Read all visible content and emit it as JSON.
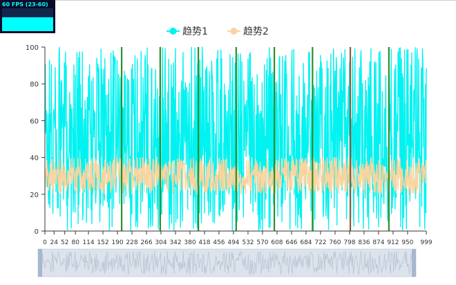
{
  "fps_meter": {
    "label": "60 FPS (23-60)",
    "level": 0.6,
    "color": "#00ffff"
  },
  "chart_data": {
    "type": "line",
    "title": "",
    "xlabel": "",
    "ylabel": "",
    "legend_position": "top-center",
    "grid": false,
    "ylim": [
      0,
      100
    ],
    "xlim": [
      0,
      999
    ],
    "y_ticks": [
      0,
      20,
      40,
      60,
      80,
      100
    ],
    "x_ticks": [
      0,
      24,
      52,
      80,
      114,
      152,
      190,
      228,
      266,
      304,
      342,
      380,
      418,
      456,
      494,
      532,
      570,
      608,
      646,
      684,
      722,
      760,
      798,
      836,
      874,
      912,
      950,
      999
    ],
    "series": [
      {
        "name": "趋势1",
        "color": "#00f2f1",
        "range": [
          0,
          100
        ],
        "points": 1000
      },
      {
        "name": "趋势2",
        "color": "#fbd49f",
        "range": [
          20,
          40
        ],
        "points": 1000
      }
    ],
    "marklines": [
      {
        "x": 201,
        "color": "#2a8f2a"
      },
      {
        "x": 302,
        "color": "#2a8f2a"
      },
      {
        "x": 402,
        "color": "#2a8f2a"
      },
      {
        "x": 501,
        "color": "#2a8f2a"
      },
      {
        "x": 601,
        "color": "#2a8f2a"
      },
      {
        "x": 701,
        "color": "#2a8f2a"
      },
      {
        "x": 800,
        "color": "#8b5a3c"
      },
      {
        "x": 901,
        "color": "#2a8f2a"
      }
    ],
    "datazoom": {
      "start": 0,
      "end": 100
    }
  }
}
